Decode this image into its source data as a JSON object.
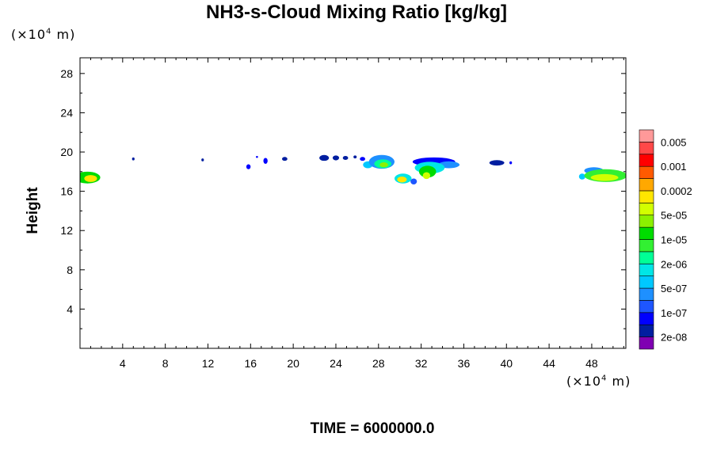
{
  "chart_data": {
    "type": "heatmap",
    "title": "NH3-s-Cloud Mixing Ratio [kg/kg]",
    "ylabel": "Height",
    "x_unit_prefix": "(×10",
    "x_unit_exp": "4",
    "x_unit_suffix": " m)",
    "y_unit_prefix": "(×10",
    "y_unit_exp": "4",
    "y_unit_suffix": " m)",
    "xlim": [
      0,
      51.2
    ],
    "ylim": [
      0,
      29.6
    ],
    "x_ticks": [
      4,
      8,
      12,
      16,
      20,
      24,
      28,
      32,
      36,
      40,
      44,
      48
    ],
    "y_ticks": [
      4,
      8,
      12,
      16,
      20,
      24,
      28
    ],
    "grid": false,
    "colorbar": {
      "colors": [
        "#7f00b2",
        "#001ea0",
        "#0000ff",
        "#1e56ff",
        "#1e90ff",
        "#00c8ff",
        "#00e6e6",
        "#00ff96",
        "#32f032",
        "#00dc00",
        "#8cf000",
        "#d2ff00",
        "#ffe600",
        "#ffa800",
        "#ff5a00",
        "#ff0000",
        "#ff4848",
        "#ff9999"
      ],
      "labels": [
        "2e-08",
        "1e-07",
        "5e-07",
        "2e-06",
        "1e-05",
        "5e-05",
        "0.0002",
        "0.001",
        "0.005"
      ]
    },
    "blobs": [
      {
        "x": 0.7,
        "y": 17.4,
        "rx": 1.2,
        "ry": 0.6,
        "level": 9
      },
      {
        "x": 1.0,
        "y": 17.3,
        "rx": 0.6,
        "ry": 0.35,
        "level": 12
      },
      {
        "x": 5.0,
        "y": 19.3,
        "rx": 0.12,
        "ry": 0.15,
        "level": 1
      },
      {
        "x": 11.5,
        "y": 19.2,
        "rx": 0.12,
        "ry": 0.15,
        "level": 1
      },
      {
        "x": 15.8,
        "y": 18.5,
        "rx": 0.2,
        "ry": 0.25,
        "level": 2
      },
      {
        "x": 16.6,
        "y": 19.5,
        "rx": 0.1,
        "ry": 0.1,
        "level": 2
      },
      {
        "x": 17.4,
        "y": 19.1,
        "rx": 0.2,
        "ry": 0.3,
        "level": 2
      },
      {
        "x": 19.2,
        "y": 19.3,
        "rx": 0.25,
        "ry": 0.2,
        "level": 1
      },
      {
        "x": 22.9,
        "y": 19.4,
        "rx": 0.45,
        "ry": 0.3,
        "level": 1
      },
      {
        "x": 24.0,
        "y": 19.4,
        "rx": 0.3,
        "ry": 0.25,
        "level": 1
      },
      {
        "x": 24.9,
        "y": 19.4,
        "rx": 0.25,
        "ry": 0.2,
        "level": 1
      },
      {
        "x": 25.8,
        "y": 19.5,
        "rx": 0.15,
        "ry": 0.15,
        "level": 1
      },
      {
        "x": 26.5,
        "y": 19.3,
        "rx": 0.25,
        "ry": 0.2,
        "level": 2
      },
      {
        "x": 27.0,
        "y": 18.7,
        "rx": 0.45,
        "ry": 0.35,
        "level": 5
      },
      {
        "x": 28.3,
        "y": 19.0,
        "rx": 1.2,
        "ry": 0.7,
        "level": 4
      },
      {
        "x": 28.4,
        "y": 18.8,
        "rx": 0.8,
        "ry": 0.45,
        "level": 7
      },
      {
        "x": 28.5,
        "y": 18.7,
        "rx": 0.4,
        "ry": 0.25,
        "level": 10
      },
      {
        "x": 30.3,
        "y": 17.3,
        "rx": 0.8,
        "ry": 0.5,
        "level": 6
      },
      {
        "x": 30.2,
        "y": 17.2,
        "rx": 0.45,
        "ry": 0.3,
        "level": 12
      },
      {
        "x": 31.3,
        "y": 17.0,
        "rx": 0.3,
        "ry": 0.3,
        "level": 3
      },
      {
        "x": 33.2,
        "y": 19.0,
        "rx": 2.0,
        "ry": 0.45,
        "level": 2
      },
      {
        "x": 34.6,
        "y": 18.7,
        "rx": 1.0,
        "ry": 0.35,
        "level": 4
      },
      {
        "x": 32.8,
        "y": 18.4,
        "rx": 1.4,
        "ry": 0.6,
        "level": 6
      },
      {
        "x": 32.6,
        "y": 18.0,
        "rx": 0.8,
        "ry": 0.6,
        "level": 9
      },
      {
        "x": 32.5,
        "y": 17.6,
        "rx": 0.35,
        "ry": 0.35,
        "level": 11
      },
      {
        "x": 39.1,
        "y": 18.9,
        "rx": 0.7,
        "ry": 0.28,
        "level": 1
      },
      {
        "x": 40.4,
        "y": 18.9,
        "rx": 0.12,
        "ry": 0.15,
        "level": 2
      },
      {
        "x": 47.1,
        "y": 17.5,
        "rx": 0.3,
        "ry": 0.3,
        "level": 5
      },
      {
        "x": 48.2,
        "y": 18.1,
        "rx": 0.9,
        "ry": 0.35,
        "level": 4
      },
      {
        "x": 49.3,
        "y": 17.6,
        "rx": 2.0,
        "ry": 0.65,
        "level": 8
      },
      {
        "x": 49.2,
        "y": 17.4,
        "rx": 1.3,
        "ry": 0.35,
        "level": 11
      }
    ]
  },
  "footer": "TIME = 6000000.0"
}
